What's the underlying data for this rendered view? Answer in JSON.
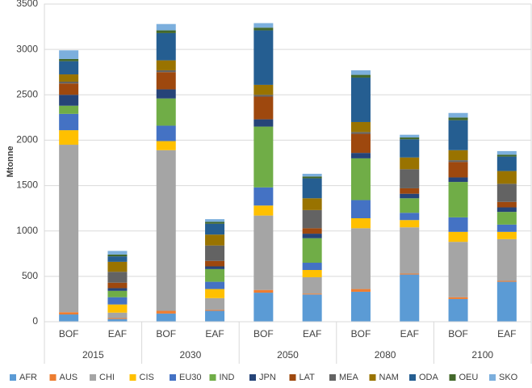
{
  "chart_data": {
    "type": "stacked_bar",
    "y_label": "Mtonne",
    "categories": [
      "BOF",
      "EAF",
      "BOF",
      "EAF",
      "BOF",
      "EAF",
      "BOF",
      "EAF",
      "BOF",
      "EAF"
    ],
    "groups": [
      "2015",
      "2030",
      "2050",
      "2080",
      "2100"
    ],
    "ylim": [
      0,
      3500
    ],
    "yticks": [
      0,
      500,
      1000,
      1500,
      2000,
      2500,
      3000,
      3500
    ],
    "grid": true,
    "legend": "bottom",
    "series": [
      {
        "name": "AFR",
        "color": "#5b9bd5",
        "values": [
          80,
          30,
          90,
          120,
          320,
          300,
          330,
          520,
          250,
          440
        ]
      },
      {
        "name": "AUS",
        "color": "#ed7d31",
        "values": [
          25,
          10,
          30,
          10,
          30,
          10,
          30,
          10,
          20,
          10
        ]
      },
      {
        "name": "CHI",
        "color": "#a5a5a5",
        "values": [
          1845,
          60,
          1770,
          130,
          820,
          180,
          670,
          510,
          610,
          460
        ]
      },
      {
        "name": "CIS",
        "color": "#ffc000",
        "values": [
          160,
          90,
          100,
          100,
          110,
          80,
          110,
          80,
          110,
          80
        ]
      },
      {
        "name": "EU30",
        "color": "#4472c4",
        "values": [
          180,
          80,
          170,
          80,
          200,
          80,
          200,
          80,
          160,
          80
        ]
      },
      {
        "name": "IND",
        "color": "#70ad47",
        "values": [
          90,
          70,
          300,
          140,
          670,
          270,
          460,
          160,
          390,
          140
        ]
      },
      {
        "name": "JPN",
        "color": "#264478",
        "values": [
          120,
          30,
          100,
          30,
          80,
          50,
          60,
          50,
          50,
          50
        ]
      },
      {
        "name": "LAT",
        "color": "#9e480e",
        "values": [
          125,
          60,
          190,
          60,
          250,
          60,
          210,
          60,
          170,
          60
        ]
      },
      {
        "name": "MEA",
        "color": "#636363",
        "values": [
          20,
          120,
          20,
          170,
          20,
          200,
          20,
          210,
          20,
          200
        ]
      },
      {
        "name": "NAM",
        "color": "#997300",
        "values": [
          80,
          110,
          110,
          120,
          110,
          130,
          110,
          130,
          110,
          140
        ]
      },
      {
        "name": "ODA",
        "color": "#255e91",
        "values": [
          145,
          60,
          300,
          120,
          600,
          220,
          490,
          200,
          330,
          160
        ]
      },
      {
        "name": "OEU",
        "color": "#43682b",
        "values": [
          25,
          20,
          30,
          20,
          30,
          20,
          30,
          20,
          30,
          20
        ]
      },
      {
        "name": "SKO",
        "color": "#7cafdd",
        "values": [
          95,
          40,
          70,
          30,
          50,
          30,
          50,
          30,
          50,
          40
        ]
      }
    ]
  }
}
